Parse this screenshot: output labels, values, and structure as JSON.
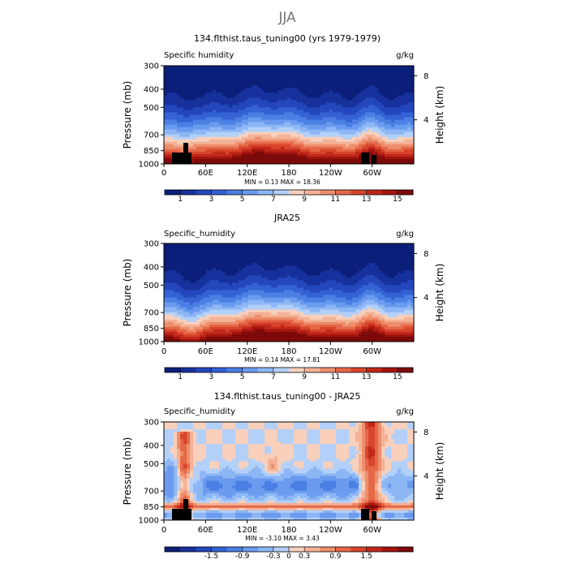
{
  "figure_title": "JJA",
  "chart_data": [
    {
      "type": "heatmap",
      "title": "134.flthist.taus_tuning00 (yrs 1979-1979)",
      "left_label": "Specific humidity",
      "units": "g/kg",
      "ylabel": "Pressure (mb)",
      "ylabel_right": "Height (km)",
      "x_ticks": [
        "0",
        "60E",
        "120E",
        "180",
        "120W",
        "60W"
      ],
      "y_ticks": [
        "300",
        "400",
        "500",
        "700",
        "850",
        "1000"
      ],
      "height_ticks": [
        "8",
        "4"
      ],
      "stats": "MIN =     0.13   MAX =    18.36",
      "min": 0.13,
      "max": 18.36,
      "colorbar_labels": [
        "1",
        "3",
        "5",
        "7",
        "9",
        "11",
        "13",
        "15"
      ],
      "colorbar_range": [
        0,
        16
      ],
      "field": "absolute"
    },
    {
      "type": "heatmap",
      "title": "JRA25",
      "left_label": "Specific_humidity",
      "units": "g/kg",
      "ylabel": "Pressure (mb)",
      "ylabel_right": "Height (km)",
      "x_ticks": [
        "0",
        "60E",
        "120E",
        "180",
        "120W",
        "60W"
      ],
      "y_ticks": [
        "300",
        "400",
        "500",
        "700",
        "850",
        "1000"
      ],
      "height_ticks": [
        "8",
        "4"
      ],
      "stats": "MIN =     0.14   MAX =    17.81",
      "min": 0.14,
      "max": 17.81,
      "colorbar_labels": [
        "1",
        "3",
        "5",
        "7",
        "9",
        "11",
        "13",
        "15"
      ],
      "colorbar_range": [
        0,
        16
      ],
      "field": "absolute"
    },
    {
      "type": "heatmap",
      "title": "134.flthist.taus_tuning00 - JRA25",
      "left_label": "Specific_humidity",
      "units": "g/kg",
      "ylabel": "Pressure (mb)",
      "ylabel_right": "Height (km)",
      "x_ticks": [
        "0",
        "60E",
        "120E",
        "180",
        "120W",
        "60W"
      ],
      "y_ticks": [
        "300",
        "400",
        "500",
        "700",
        "850",
        "1000"
      ],
      "height_ticks": [
        "8",
        "4"
      ],
      "stats": "MIN =    -3.10   MAX =    3.43",
      "min": -3.1,
      "max": 3.43,
      "colorbar_labels": [
        "-1.5",
        "-0.9",
        "-0.3",
        "0",
        "0.3",
        "0.9",
        "1.5"
      ],
      "colorbar_range": [
        -2,
        2
      ],
      "field": "difference"
    }
  ]
}
